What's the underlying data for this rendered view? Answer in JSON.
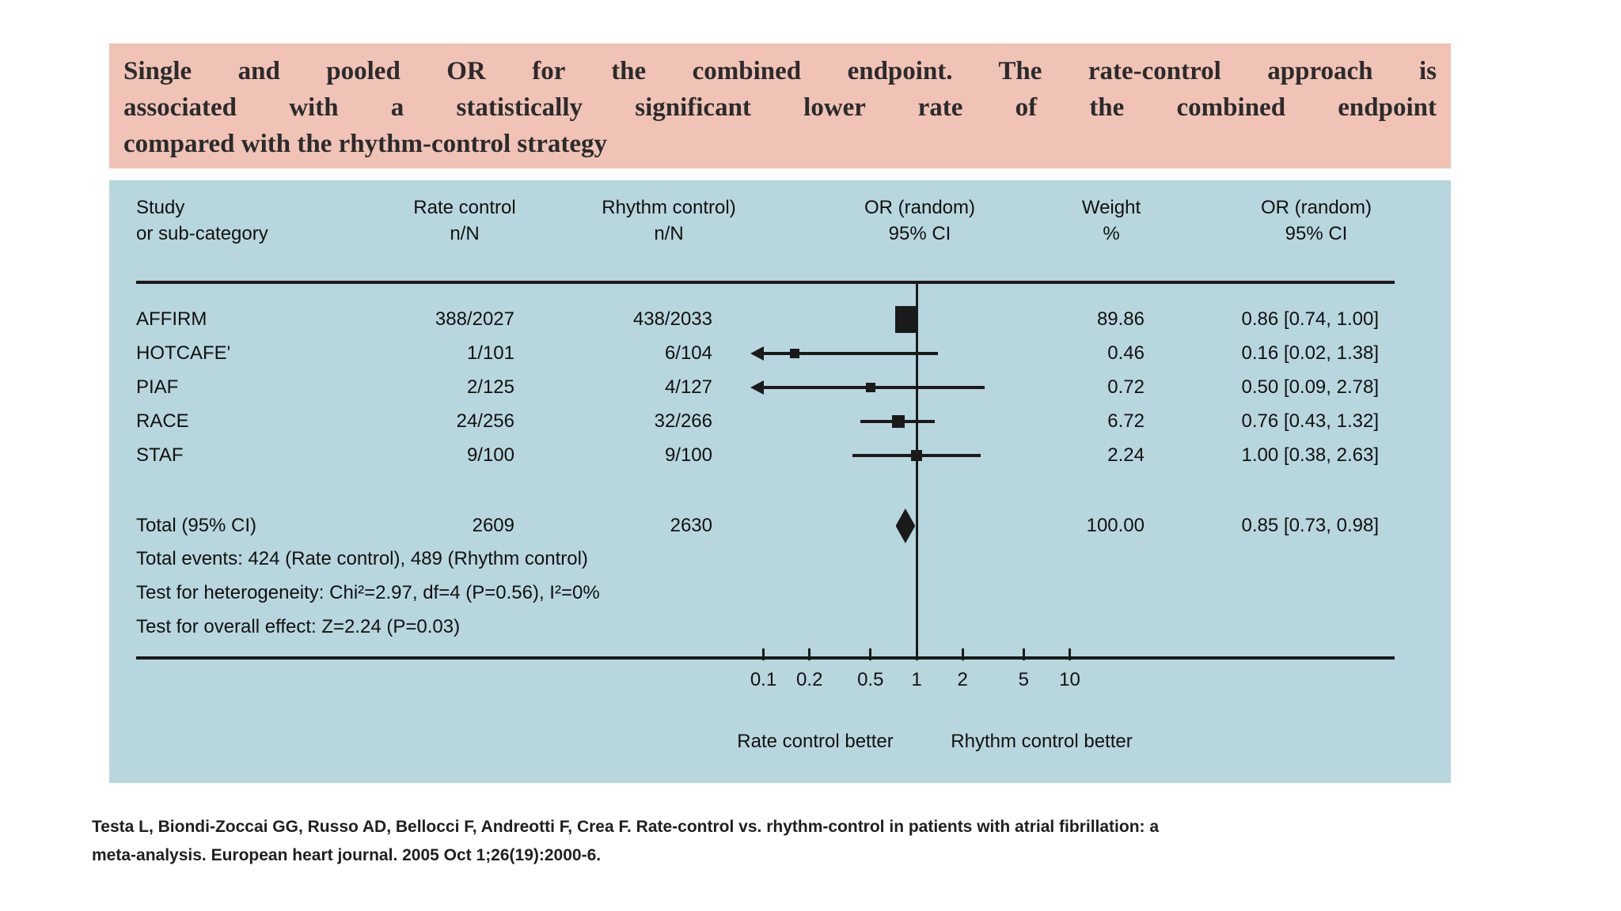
{
  "header": {
    "bg": "#f0c3b6",
    "lines": [
      "Single and pooled OR for the combined endpoint. The rate-control approach is",
      "associated with a statistically significant lower rate of the combined endpoint",
      "compared with the rhythm-control strategy"
    ]
  },
  "panel": {
    "bg": "#b8d6de"
  },
  "table": {
    "col_study": [
      "Study",
      "or sub-category"
    ],
    "col_rate": [
      "Rate control",
      "n/N"
    ],
    "col_rhythm": [
      "Rhythm control)",
      "n/N"
    ],
    "col_or_plot": [
      "OR (random)",
      "95% CI"
    ],
    "col_weight": [
      "Weight",
      "%"
    ],
    "col_or_text": [
      "OR (random)",
      "95% CI"
    ]
  },
  "chart_data": {
    "type": "forest",
    "x_scale": "log10",
    "x_range": [
      0.1,
      10
    ],
    "tick_labels": [
      "0.1",
      "0.2",
      "0.5",
      "1",
      "2",
      "5",
      "10"
    ],
    "tick_values": [
      0.1,
      0.2,
      0.5,
      1,
      2,
      5,
      10
    ],
    "axis_labels": {
      "left": "Rate control better",
      "right": "Rhythm control better"
    },
    "studies": [
      {
        "name": "AFFIRM",
        "rate": "388/2027",
        "rhythm": "438/2033",
        "or": 0.86,
        "lo": 0.74,
        "hi": 1.0,
        "weight": "89.86",
        "or_ci": "0.86 [0.74, 1.00]"
      },
      {
        "name": "HOTCAFE'",
        "rate": "1/101",
        "rhythm": "6/104",
        "or": 0.16,
        "lo": 0.02,
        "hi": 1.38,
        "weight": "0.46",
        "or_ci": "0.16 [0.02, 1.38]"
      },
      {
        "name": "PIAF",
        "rate": "2/125",
        "rhythm": "4/127",
        "or": 0.5,
        "lo": 0.09,
        "hi": 2.78,
        "weight": "0.72",
        "or_ci": "0.50 [0.09, 2.78]"
      },
      {
        "name": "RACE",
        "rate": "24/256",
        "rhythm": "32/266",
        "or": 0.76,
        "lo": 0.43,
        "hi": 1.32,
        "weight": "6.72",
        "or_ci": "0.76 [0.43, 1.32]"
      },
      {
        "name": "STAF",
        "rate": "9/100",
        "rhythm": "9/100",
        "or": 1.0,
        "lo": 0.38,
        "hi": 2.63,
        "weight": "2.24",
        "or_ci": "1.00 [0.38, 2.63]"
      }
    ],
    "total": {
      "label": "Total (95% CI)",
      "rate": "2609",
      "rhythm": "2630",
      "or": 0.85,
      "lo": 0.73,
      "hi": 0.98,
      "weight": "100.00",
      "or_ci": "0.85 [0.73, 0.98]"
    },
    "footnotes": [
      "Total events: 424 (Rate control), 489 (Rhythm control)",
      "Test for heterogeneity: Chi²=2.97, df=4 (P=0.56), I²=0%",
      "Test for overall effect: Z=2.24 (P=0.03)"
    ]
  },
  "citation": {
    "lines": [
      "Testa L, Biondi-Zoccai GG, Russo AD, Bellocci F, Andreotti F, Crea F. Rate-control vs. rhythm-control in patients with atrial fibrillation: a",
      "meta-analysis. European heart journal. 2005 Oct 1;26(19):2000-6."
    ]
  }
}
